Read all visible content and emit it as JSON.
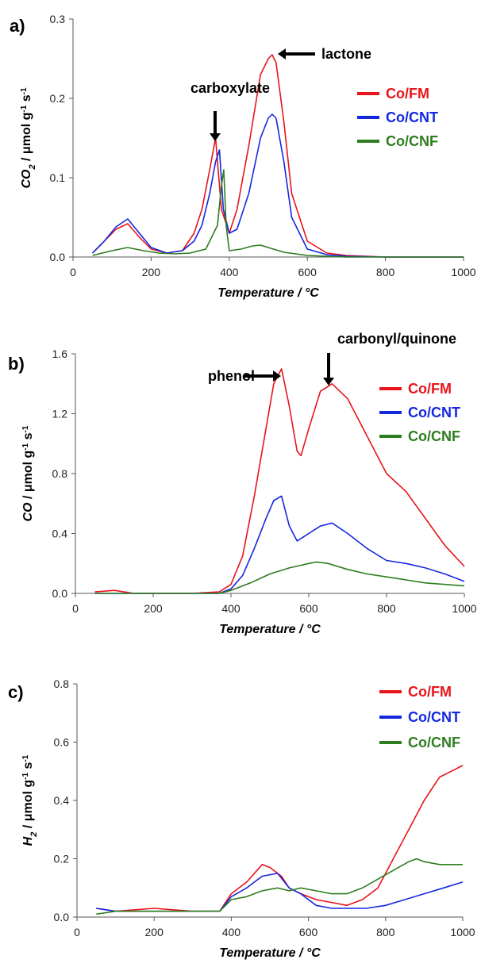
{
  "chart_data": [
    {
      "type": "line",
      "panel": "a)",
      "xlabel": "Temperature / °C",
      "ylabel": "CO2 / μmol g-1 s-1",
      "xlim": [
        0,
        1000
      ],
      "ylim": [
        0,
        0.3
      ],
      "xticks": [
        "0",
        "200",
        "400",
        "600",
        "800",
        "1000"
      ],
      "yticks": [
        "0.0",
        "0.1",
        "0.2",
        "0.3"
      ],
      "legend_position": "right",
      "annotations": [
        "carboxylate",
        "lactone"
      ],
      "series": [
        {
          "name": "Co/FM",
          "color": "#e8141b",
          "x": [
            50,
            80,
            110,
            140,
            170,
            200,
            240,
            280,
            310,
            330,
            350,
            365,
            380,
            400,
            420,
            450,
            480,
            500,
            510,
            520,
            540,
            560,
            600,
            650,
            700,
            800,
            900,
            1000
          ],
          "y": [
            0.005,
            0.02,
            0.035,
            0.042,
            0.025,
            0.01,
            0.005,
            0.008,
            0.03,
            0.06,
            0.11,
            0.15,
            0.06,
            0.03,
            0.06,
            0.14,
            0.23,
            0.25,
            0.255,
            0.245,
            0.17,
            0.08,
            0.02,
            0.005,
            0.002,
            0.0,
            0.0,
            0.0
          ]
        },
        {
          "name": "Co/CNT",
          "color": "#1428e0",
          "x": [
            50,
            80,
            110,
            140,
            170,
            200,
            240,
            280,
            310,
            330,
            350,
            365,
            375,
            385,
            400,
            420,
            450,
            480,
            500,
            510,
            520,
            540,
            560,
            600,
            650,
            700,
            800,
            900,
            1000
          ],
          "y": [
            0.005,
            0.02,
            0.038,
            0.048,
            0.03,
            0.012,
            0.005,
            0.008,
            0.02,
            0.04,
            0.08,
            0.12,
            0.135,
            0.06,
            0.03,
            0.035,
            0.08,
            0.15,
            0.175,
            0.18,
            0.175,
            0.12,
            0.05,
            0.01,
            0.003,
            0.001,
            0.0,
            0.0,
            0.0
          ]
        },
        {
          "name": "Co/CNF",
          "color": "#2e7d1f",
          "x": [
            50,
            100,
            140,
            180,
            220,
            260,
            300,
            340,
            370,
            380,
            386,
            392,
            400,
            430,
            460,
            480,
            500,
            540,
            600,
            700,
            800,
            900,
            1000
          ],
          "y": [
            0.002,
            0.008,
            0.012,
            0.008,
            0.005,
            0.004,
            0.005,
            0.01,
            0.04,
            0.09,
            0.11,
            0.04,
            0.008,
            0.01,
            0.014,
            0.015,
            0.012,
            0.006,
            0.002,
            0.0,
            0.0,
            0.0,
            0.0
          ]
        }
      ]
    },
    {
      "type": "line",
      "panel": "b)",
      "xlabel": "Temperature / °C",
      "ylabel": "CO / μmol g-1 s-1",
      "xlim": [
        0,
        1000
      ],
      "ylim": [
        0,
        1.6
      ],
      "xticks": [
        "0",
        "200",
        "400",
        "600",
        "800",
        "1000"
      ],
      "yticks": [
        "0.0",
        "0.4",
        "0.8",
        "1.2",
        "1.6"
      ],
      "legend_position": "right",
      "annotations": [
        "phenol",
        "carbonyl/quinone"
      ],
      "series": [
        {
          "name": "Co/FM",
          "color": "#e8141b",
          "x": [
            50,
            100,
            150,
            200,
            300,
            370,
            400,
            430,
            460,
            490,
            510,
            530,
            550,
            570,
            580,
            600,
            630,
            660,
            700,
            750,
            800,
            850,
            900,
            950,
            1000
          ],
          "y": [
            0.01,
            0.02,
            0.0,
            0.0,
            0.0,
            0.01,
            0.06,
            0.25,
            0.65,
            1.1,
            1.4,
            1.5,
            1.25,
            0.95,
            0.92,
            1.1,
            1.35,
            1.4,
            1.3,
            1.05,
            0.8,
            0.68,
            0.5,
            0.32,
            0.18
          ]
        },
        {
          "name": "Co/CNT",
          "color": "#1428e0",
          "x": [
            50,
            200,
            370,
            400,
            430,
            460,
            490,
            510,
            530,
            550,
            570,
            600,
            630,
            660,
            700,
            750,
            800,
            850,
            900,
            950,
            1000
          ],
          "y": [
            0.0,
            0.0,
            0.0,
            0.03,
            0.12,
            0.3,
            0.5,
            0.62,
            0.65,
            0.45,
            0.35,
            0.4,
            0.45,
            0.47,
            0.4,
            0.3,
            0.22,
            0.2,
            0.17,
            0.13,
            0.08
          ]
        },
        {
          "name": "Co/CNF",
          "color": "#2e7d1f",
          "x": [
            50,
            200,
            370,
            400,
            450,
            500,
            550,
            600,
            620,
            650,
            700,
            750,
            800,
            850,
            900,
            950,
            1000
          ],
          "y": [
            0.0,
            0.0,
            0.0,
            0.02,
            0.07,
            0.13,
            0.17,
            0.2,
            0.21,
            0.2,
            0.16,
            0.13,
            0.11,
            0.09,
            0.07,
            0.06,
            0.05
          ]
        }
      ]
    },
    {
      "type": "line",
      "panel": "c)",
      "xlabel": "Temperature / °C",
      "ylabel": "H2 / μmol g-1 s-1",
      "xlim": [
        0,
        1000
      ],
      "ylim": [
        0,
        0.8
      ],
      "xticks": [
        "0",
        "200",
        "400",
        "600",
        "800",
        "1000"
      ],
      "yticks": [
        "0.0",
        "0.2",
        "0.4",
        "0.6",
        "0.8"
      ],
      "legend_position": "top-right",
      "series": [
        {
          "name": "Co/FM",
          "color": "#e8141b",
          "x": [
            50,
            100,
            200,
            300,
            370,
            400,
            440,
            480,
            500,
            530,
            550,
            580,
            620,
            660,
            700,
            740,
            780,
            820,
            860,
            900,
            940,
            970,
            1000
          ],
          "y": [
            0.03,
            0.02,
            0.03,
            0.02,
            0.02,
            0.08,
            0.12,
            0.18,
            0.17,
            0.14,
            0.1,
            0.08,
            0.06,
            0.05,
            0.04,
            0.06,
            0.1,
            0.2,
            0.3,
            0.4,
            0.48,
            0.5,
            0.52
          ]
        },
        {
          "name": "Co/CNT",
          "color": "#1428e0",
          "x": [
            50,
            100,
            200,
            300,
            370,
            400,
            440,
            480,
            520,
            550,
            580,
            620,
            660,
            700,
            750,
            800,
            850,
            900,
            950,
            1000
          ],
          "y": [
            0.03,
            0.02,
            0.02,
            0.02,
            0.02,
            0.07,
            0.1,
            0.14,
            0.15,
            0.1,
            0.08,
            0.04,
            0.03,
            0.03,
            0.03,
            0.04,
            0.06,
            0.08,
            0.1,
            0.12
          ]
        },
        {
          "name": "Co/CNF",
          "color": "#2e7d1f",
          "x": [
            50,
            100,
            200,
            300,
            370,
            400,
            440,
            480,
            520,
            550,
            580,
            620,
            660,
            700,
            740,
            780,
            820,
            860,
            880,
            900,
            940,
            1000
          ],
          "y": [
            0.01,
            0.02,
            0.02,
            0.02,
            0.02,
            0.06,
            0.07,
            0.09,
            0.1,
            0.09,
            0.1,
            0.09,
            0.08,
            0.08,
            0.1,
            0.13,
            0.16,
            0.19,
            0.2,
            0.19,
            0.18,
            0.18
          ]
        }
      ]
    }
  ]
}
